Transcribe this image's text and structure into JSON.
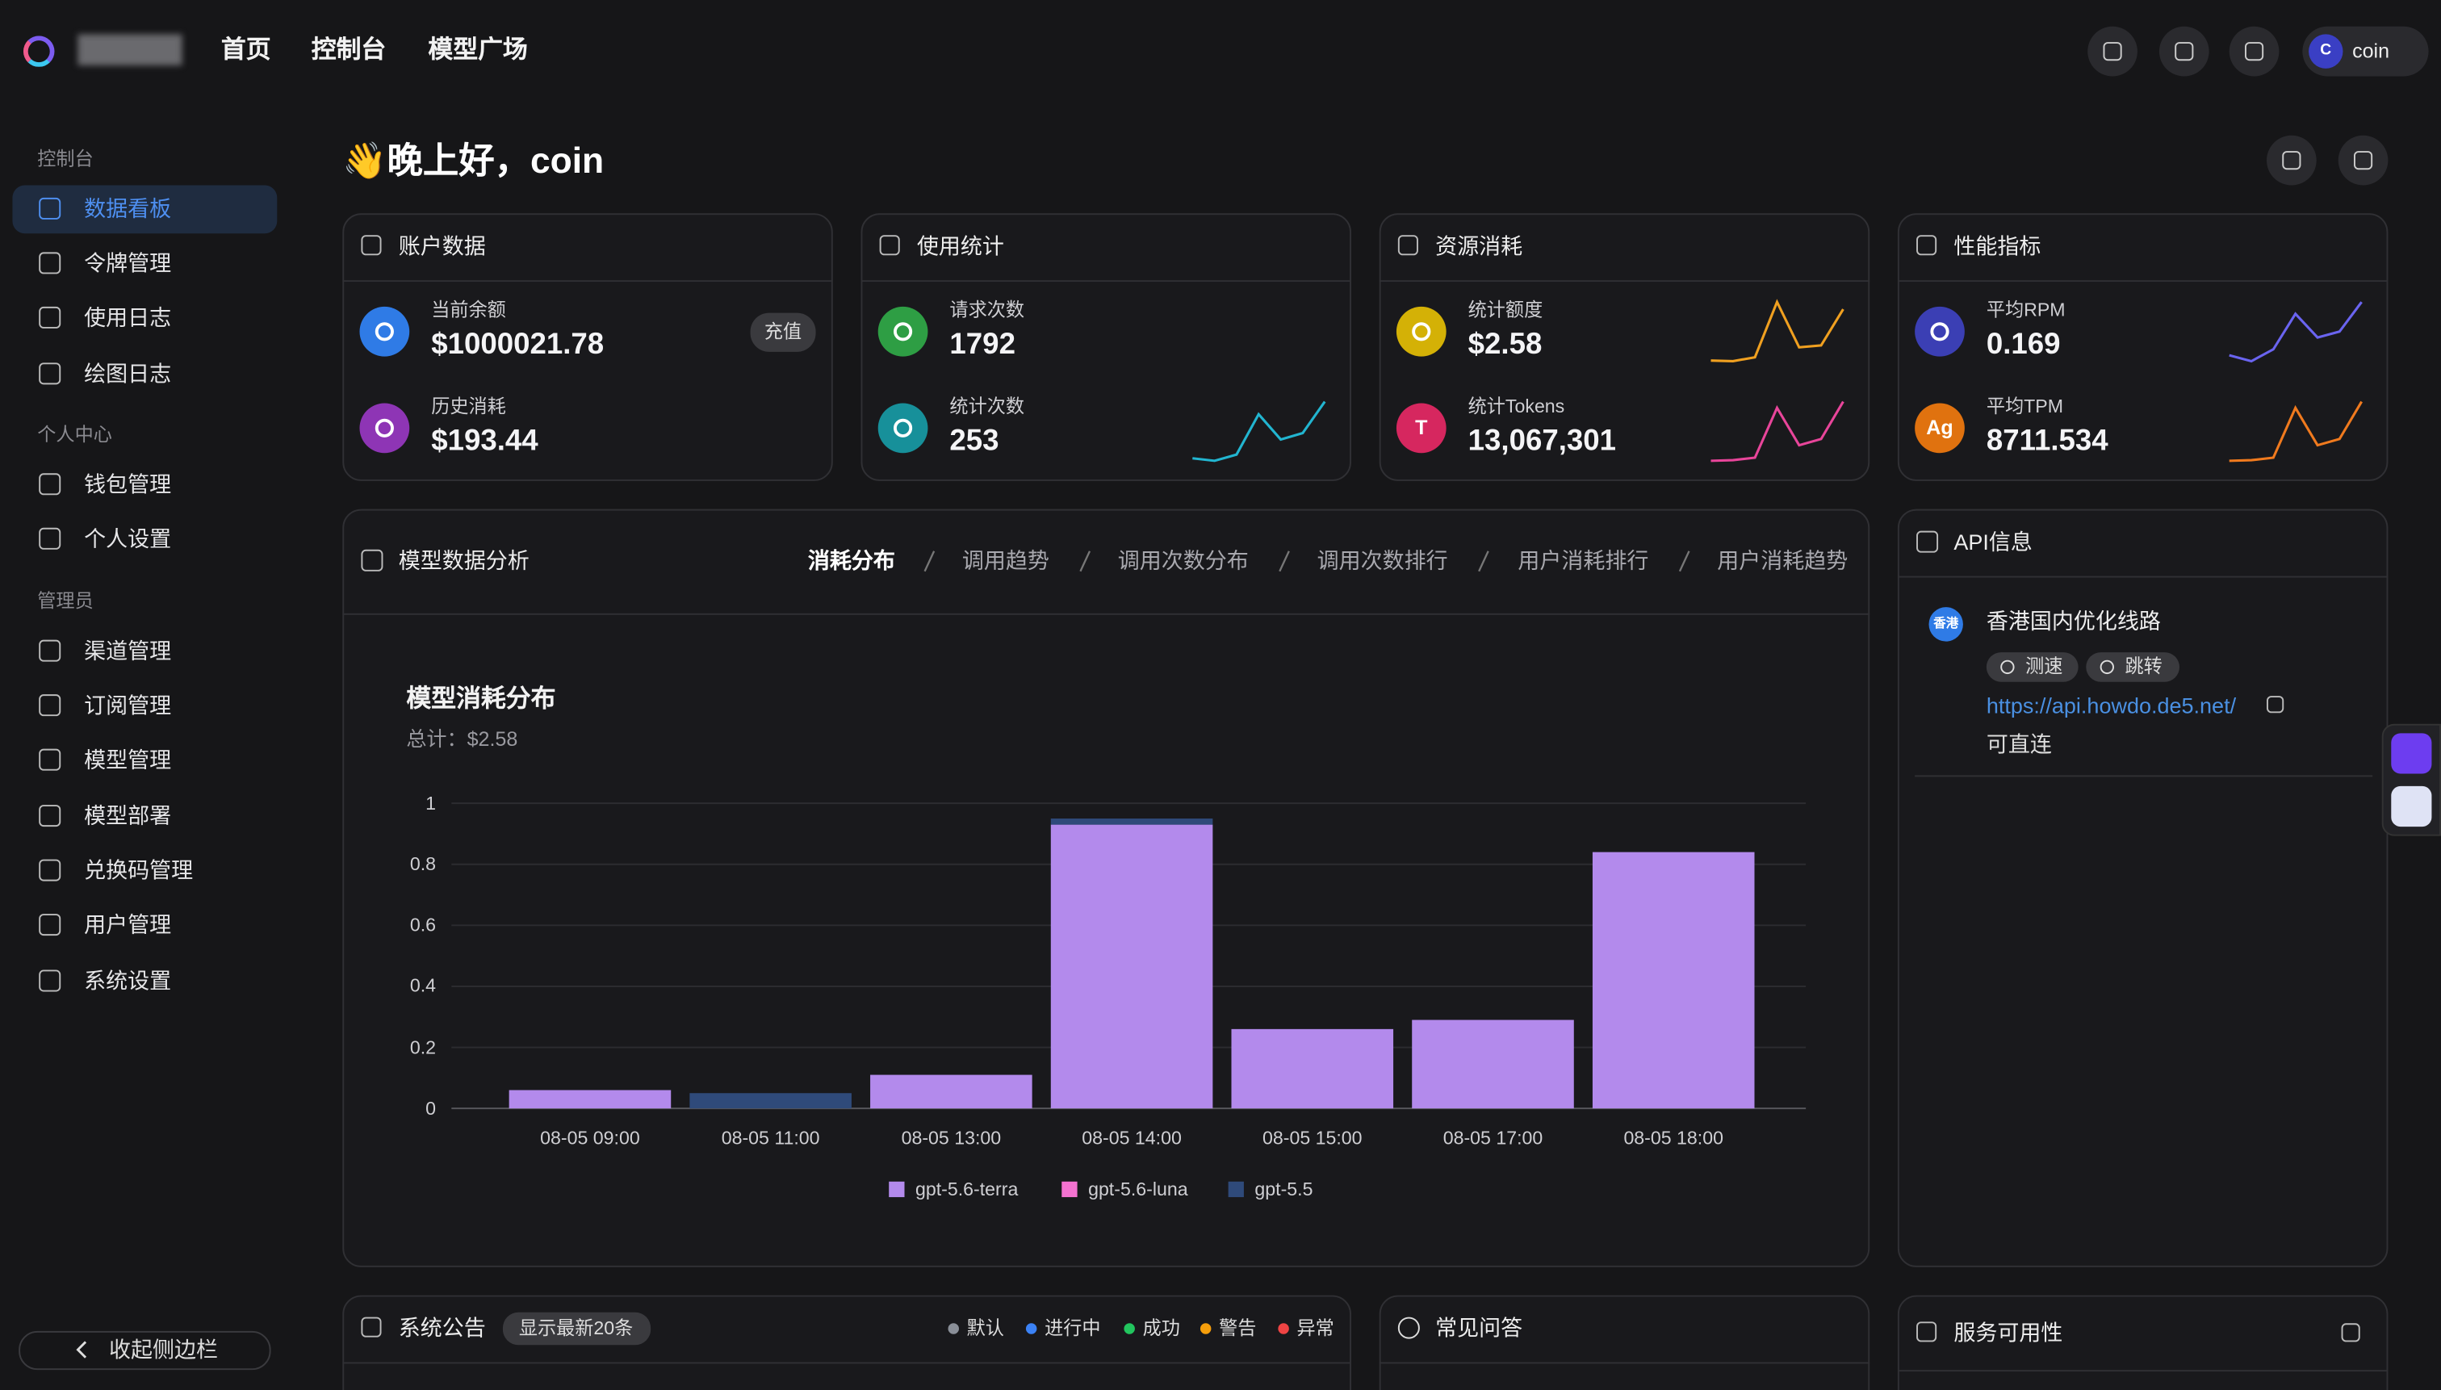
{
  "header": {
    "nav": [
      "首页",
      "控制台",
      "模型广场"
    ],
    "user_initial": "C",
    "user": "coin"
  },
  "sidebar": {
    "groups": [
      {
        "title": "控制台",
        "items": [
          "数据看板",
          "令牌管理",
          "使用日志",
          "绘图日志"
        ]
      },
      {
        "title": "个人中心",
        "items": [
          "钱包管理",
          "个人设置"
        ]
      },
      {
        "title": "管理员",
        "items": [
          "渠道管理",
          "订阅管理",
          "模型管理",
          "模型部署",
          "兑换码管理",
          "用户管理",
          "系统设置"
        ]
      }
    ],
    "collapse": "收起侧边栏"
  },
  "greeting": "👋晚上好，coin",
  "cards": [
    {
      "title": "账户数据",
      "items": [
        {
          "label": "当前余额",
          "value": "$1000021.78",
          "action": "充值",
          "color": "#2f7be6"
        },
        {
          "label": "历史消耗",
          "value": "$193.44",
          "color": "#8e35b5"
        }
      ]
    },
    {
      "title": "使用统计",
      "items": [
        {
          "label": "请求次数",
          "value": "1792",
          "color": "#2e9e44"
        },
        {
          "label": "统计次数",
          "value": "253",
          "color": "#17909a",
          "trend": [
            5,
            3,
            8,
            40,
            20,
            25,
            50
          ],
          "trend_color": "#22b5d0"
        }
      ]
    },
    {
      "title": "资源消耗",
      "items": [
        {
          "label": "统计额度",
          "value": "$2.58",
          "color": "#d4b106",
          "trend": [
            0.06,
            0.05,
            0.11,
            0.95,
            0.26,
            0.29,
            0.84
          ],
          "trend_color": "#f0a020"
        },
        {
          "label": "统计Tokens",
          "value": "13,067,301",
          "badge": "T",
          "color": "#d6275f",
          "trend": [
            0.05,
            0.06,
            0.1,
            0.9,
            0.3,
            0.4,
            1
          ],
          "trend_color": "#e8459a"
        }
      ]
    },
    {
      "title": "性能指标",
      "items": [
        {
          "label": "平均RPM",
          "value": "0.169",
          "color": "#3b3fb4",
          "trend": [
            1,
            0,
            2,
            8,
            4,
            5,
            10
          ],
          "trend_color": "#6a64f0"
        },
        {
          "label": "平均TPM",
          "value": "8711.534",
          "badge": "Ag",
          "color": "#e0720f",
          "trend": [
            0.05,
            0.06,
            0.1,
            0.9,
            0.3,
            0.4,
            1
          ],
          "trend_color": "#f07a1e"
        }
      ]
    }
  ],
  "analysis": {
    "title": "模型数据分析",
    "tabs": [
      "消耗分布",
      "调用趋势",
      "调用次数分布",
      "调用次数排行",
      "用户消耗排行",
      "用户消耗趋势"
    ]
  },
  "chart_data": {
    "type": "bar",
    "stacked": true,
    "title": "模型消耗分布",
    "subtitle": "总计：$2.58",
    "categories": [
      "08-05 09:00",
      "08-05 11:00",
      "08-05 13:00",
      "08-05 14:00",
      "08-05 15:00",
      "08-05 17:00",
      "08-05 18:00"
    ],
    "series": [
      {
        "name": "gpt-5.6-terra",
        "color": "#b38aec",
        "values": [
          0.06,
          0,
          0.11,
          0.93,
          0.26,
          0.29,
          0.84
        ]
      },
      {
        "name": "gpt-5.6-luna",
        "color": "#f472d0",
        "values": [
          0,
          0,
          0,
          0,
          0,
          0,
          0
        ]
      },
      {
        "name": "gpt-5.5",
        "color": "#2f4a7a",
        "values": [
          0,
          0.05,
          0,
          0.02,
          0,
          0,
          0
        ]
      }
    ],
    "ylim": [
      0,
      1
    ],
    "yticks": [
      0,
      0.2,
      0.4,
      0.6,
      0.8,
      1
    ],
    "grid": true,
    "legend": "bottom"
  },
  "api": {
    "title": "API信息",
    "route": {
      "badge": "香港",
      "name": "香港国内优化线路",
      "buttons": [
        "测速",
        "跳转"
      ],
      "url": "https://api.howdo.de5.net/",
      "status": "可直连"
    }
  },
  "announcements": {
    "title": "系统公告",
    "tag": "显示最新20条",
    "legend": [
      {
        "name": "默认",
        "color": "#8a8f98"
      },
      {
        "name": "进行中",
        "color": "#3b82f6"
      },
      {
        "name": "成功",
        "color": "#22c55e"
      },
      {
        "name": "警告",
        "color": "#f59e0b"
      },
      {
        "name": "异常",
        "color": "#ef4444"
      }
    ]
  },
  "faq": {
    "title": "常见问答"
  },
  "availability": {
    "title": "服务可用性"
  }
}
